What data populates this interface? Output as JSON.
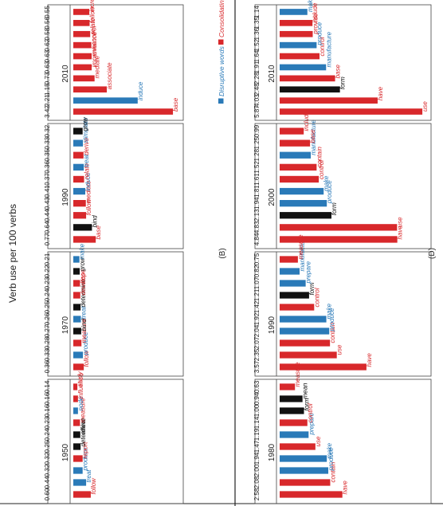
{
  "page": {
    "ylabel": "Verb use per 100 verbs",
    "legend": {
      "disruptive": "Disruptive words",
      "consolidating": "Consolidating words"
    },
    "panel_labels": [
      "(B)",
      "(D)"
    ]
  },
  "colors": {
    "disruptive": "#2a7ab8",
    "consolidating": "#d8282b",
    "neutral": "#111111",
    "frame": "#444444"
  },
  "chart_data": [
    {
      "type": "bar",
      "panel": "(B)",
      "ylabel": "Verb use per 100 verbs",
      "ylim": [
        0,
        3.5
      ],
      "legend": [
        "Disruptive words",
        "Consolidating words"
      ],
      "groups": [
        {
          "year": "1950",
          "bars": [
            {
              "word": "follow",
              "value": 0.6,
              "class": "consolidating"
            },
            {
              "word": "treat",
              "value": 0.44,
              "class": "disruptive"
            },
            {
              "word": "produce",
              "value": 0.32,
              "class": "disruptive"
            },
            {
              "word": "report",
              "value": 0.32,
              "class": "consolidating"
            },
            {
              "word": "determine",
              "value": 0.25,
              "class": "neutral"
            },
            {
              "word": "affect",
              "value": 0.24,
              "class": "neutral"
            },
            {
              "word": "measure",
              "value": 0.23,
              "class": "consolidating"
            },
            {
              "word": "node",
              "value": 0.16,
              "class": "disruptive"
            },
            {
              "word": "influence",
              "value": 0.16,
              "class": "consolidating"
            },
            {
              "word": "study",
              "value": 0.14,
              "class": "consolidating"
            }
          ]
        },
        {
          "year": "1970",
          "bars": [
            {
              "word": "follow",
              "value": 0.36,
              "class": "consolidating"
            },
            {
              "word": "produce",
              "value": 0.33,
              "class": "disruptive"
            },
            {
              "word": "measure",
              "value": 0.28,
              "class": "consolidating"
            },
            {
              "word": "bind",
              "value": 0.27,
              "class": "neutral"
            },
            {
              "word": "treat",
              "value": 0.26,
              "class": "disruptive"
            },
            {
              "word": "determine",
              "value": 0.25,
              "class": "neutral"
            },
            {
              "word": "develop",
              "value": 0.24,
              "class": "consolidating"
            },
            {
              "word": "base",
              "value": 0.23,
              "class": "consolidating"
            },
            {
              "word": "grow",
              "value": 0.22,
              "class": "neutral"
            },
            {
              "word": "make",
              "value": 0.21,
              "class": "disruptive"
            }
          ]
        },
        {
          "year": "1990",
          "bars": [
            {
              "word": "base",
              "value": 0.77,
              "class": "consolidating"
            },
            {
              "word": "bind",
              "value": 0.64,
              "class": "neutral"
            },
            {
              "word": "follow",
              "value": 0.44,
              "class": "consolidating"
            },
            {
              "word": "mediate",
              "value": 0.43,
              "class": "consolidating"
            },
            {
              "word": "induce",
              "value": 0.41,
              "class": "disruptive"
            },
            {
              "word": "relate",
              "value": 0.37,
              "class": "consolidating"
            },
            {
              "word": "treat",
              "value": 0.36,
              "class": "disruptive"
            },
            {
              "word": "derive",
              "value": 0.35,
              "class": "consolidating"
            },
            {
              "word": "stimulate",
              "value": 0.33,
              "class": "disruptive"
            },
            {
              "word": "grow",
              "value": 0.32,
              "class": "neutral"
            }
          ]
        },
        {
          "year": "2010",
          "bars": [
            {
              "word": "base",
              "value": 3.42,
              "class": "consolidating"
            },
            {
              "word": "induce",
              "value": 2.21,
              "class": "disruptive"
            },
            {
              "word": "associate",
              "value": 1.15,
              "class": "consolidating"
            },
            {
              "word": "mediate",
              "value": 0.73,
              "class": "consolidating"
            },
            {
              "word": "improve",
              "value": 0.63,
              "class": "consolidating"
            },
            {
              "word": "enhance",
              "value": 0.63,
              "class": "consolidating"
            },
            {
              "word": "control",
              "value": 0.62,
              "class": "consolidating"
            },
            {
              "word": "relate",
              "value": 0.58,
              "class": "consolidating"
            },
            {
              "word": "follow",
              "value": 0.56,
              "class": "consolidating"
            },
            {
              "word": "increase",
              "value": 0.55,
              "class": "consolidating"
            }
          ]
        }
      ]
    },
    {
      "type": "bar",
      "panel": "(D)",
      "ylabel": "",
      "ylim": [
        0,
        5.9
      ],
      "groups": [
        {
          "year": "1980",
          "bars": [
            {
              "word": "have",
              "value": 2.58,
              "class": "consolidating"
            },
            {
              "word": "contain",
              "value": 2.08,
              "class": "consolidating"
            },
            {
              "word": "produce",
              "value": 2.0,
              "class": "disruptive"
            },
            {
              "word": "make",
              "value": 1.94,
              "class": "disruptive"
            },
            {
              "word": "use",
              "value": 1.47,
              "class": "consolidating"
            },
            {
              "word": "prepare",
              "value": 1.19,
              "class": "disruptive"
            },
            {
              "word": "control",
              "value": 1.14,
              "class": "consolidating"
            },
            {
              "word": "form",
              "value": 1.0,
              "class": "neutral"
            },
            {
              "word": "mean",
              "value": 0.94,
              "class": "neutral"
            },
            {
              "word": "measure",
              "value": 0.63,
              "class": "consolidating"
            }
          ]
        },
        {
          "year": "1990",
          "bars": [
            {
              "word": "have",
              "value": 3.57,
              "class": "consolidating"
            },
            {
              "word": "use",
              "value": 2.35,
              "class": "consolidating"
            },
            {
              "word": "contain",
              "value": 2.07,
              "class": "consolidating"
            },
            {
              "word": "produce",
              "value": 2.04,
              "class": "disruptive"
            },
            {
              "word": "make",
              "value": 1.92,
              "class": "disruptive"
            },
            {
              "word": "control",
              "value": 1.42,
              "class": "consolidating"
            },
            {
              "word": "form",
              "value": 1.21,
              "class": "neutral"
            },
            {
              "word": "prepare",
              "value": 1.07,
              "class": "disruptive"
            },
            {
              "word": "manufacture",
              "value": 0.82,
              "class": "disruptive"
            },
            {
              "word": "measure",
              "value": 0.75,
              "class": "consolidating"
            }
          ]
        },
        {
          "year": "2000",
          "bars": [
            {
              "word": "have",
              "value": 4.84,
              "class": "consolidating"
            },
            {
              "word": "use",
              "value": 4.83,
              "class": "consolidating"
            },
            {
              "word": "form",
              "value": 2.13,
              "class": "neutral"
            },
            {
              "word": "produce",
              "value": 1.94,
              "class": "disruptive"
            },
            {
              "word": "make",
              "value": 1.81,
              "class": "disruptive"
            },
            {
              "word": "control",
              "value": 1.61,
              "class": "consolidating"
            },
            {
              "word": "contain",
              "value": 1.52,
              "class": "consolidating"
            },
            {
              "word": "manufacture",
              "value": 1.28,
              "class": "disruptive"
            },
            {
              "word": "base",
              "value": 1.25,
              "class": "consolidating"
            },
            {
              "word": "include",
              "value": 0.99,
              "class": "consolidating"
            }
          ]
        },
        {
          "year": "2010",
          "bars": [
            {
              "word": "use",
              "value": 5.87,
              "class": "consolidating"
            },
            {
              "word": "have",
              "value": 4.03,
              "class": "consolidating"
            },
            {
              "word": "form",
              "value": 2.48,
              "class": "neutral"
            },
            {
              "word": "base",
              "value": 2.28,
              "class": "consolidating"
            },
            {
              "word": "manufacture",
              "value": 1.91,
              "class": "disruptive"
            },
            {
              "word": "control",
              "value": 1.64,
              "class": "consolidating"
            },
            {
              "word": "produce",
              "value": 1.52,
              "class": "disruptive"
            },
            {
              "word": "provide",
              "value": 1.36,
              "class": "consolidating"
            },
            {
              "word": "include",
              "value": 1.35,
              "class": "consolidating"
            },
            {
              "word": "make",
              "value": 1.14,
              "class": "disruptive"
            }
          ]
        }
      ]
    }
  ]
}
